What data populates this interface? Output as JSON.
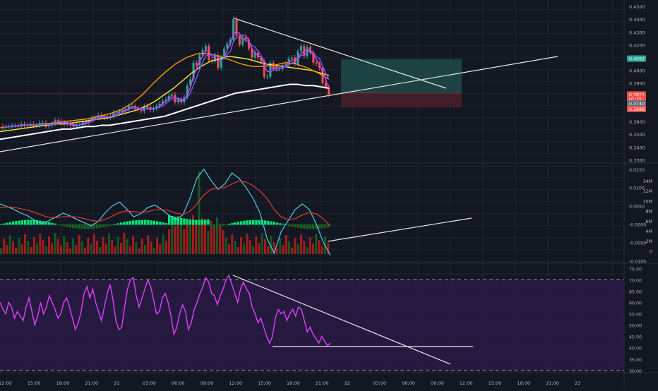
{
  "colors": {
    "background": "#131722",
    "grid": "#1f2433",
    "candle_up": "#26a69a",
    "candle_down": "#ef5350",
    "ma_purple": "#7b5cff",
    "ma_pink": "#e040fb",
    "ma_orange": "#ff9800",
    "ma_yellow": "#ffeb3b",
    "ma_white": "#ffffff",
    "rsi_line": "#e040fb",
    "rsi_band": "#2a1a45",
    "macd_line": "#4dd0e1",
    "signal_line": "#e53935",
    "hist_up": "#00e676",
    "hist_down": "#1b5e20",
    "vol_up": "#1b5e20",
    "vol_down": "#b71c1c",
    "label_green": "#26a69a",
    "label_red": "#ef5350"
  },
  "price_axis": {
    "ticks": [
      "0.4500",
      "0.4400",
      "0.4300",
      "0.4200",
      "0.4000",
      "0.3900",
      "0.3600",
      "0.3500",
      "0.3400",
      "0.3300"
    ],
    "badges": [
      {
        "text": "0.4092",
        "color": "#26a69a"
      },
      {
        "text": "0.3811",
        "color": "#ef5350"
      },
      {
        "text": "01:15",
        "color": "#ef5350"
      },
      {
        "text": "0.3740",
        "color": "#5b6b7a"
      },
      {
        "text": "0.3698",
        "color": "#ef5350"
      }
    ]
  },
  "indicator_axis": {
    "left_ticks": [
      "0.0150",
      "0.0100",
      "0.0050",
      "-0.0000",
      "-0.0050",
      "-0.0100"
    ],
    "volume_ticks": [
      "14M",
      "12M",
      "10M",
      "8M",
      "6M",
      "4M",
      "2M",
      "0"
    ]
  },
  "rsi_axis": {
    "ticks": [
      "75.00",
      "70.00",
      "65.00",
      "60.00",
      "55.00",
      "50.00",
      "45.00",
      "40.00",
      "35.00",
      "30.00"
    ]
  },
  "time_axis": {
    "ticks": [
      "12:00",
      "15:00",
      "18:00",
      "21:00",
      "21",
      "03:00",
      "06:00",
      "09:00",
      "12:00",
      "15:00",
      "18:00",
      "21:00",
      "22",
      "03:00",
      "06:00",
      "09:00",
      "12:00",
      "15:00",
      "18:00",
      "21:00",
      "23"
    ]
  },
  "chart_data": [
    {
      "type": "candlestick",
      "ylim": [
        0.328,
        0.455
      ],
      "open": [
        0.356,
        0.355,
        0.356,
        0.356,
        0.357,
        0.357,
        0.356,
        0.358,
        0.357,
        0.357,
        0.358,
        0.357,
        0.357,
        0.359,
        0.359,
        0.356,
        0.357,
        0.358,
        0.361,
        0.36,
        0.359,
        0.358,
        0.358,
        0.357,
        0.356,
        0.357,
        0.358,
        0.36,
        0.359,
        0.361,
        0.363,
        0.363,
        0.365,
        0.364,
        0.363,
        0.363,
        0.364,
        0.367,
        0.367,
        0.368,
        0.369,
        0.37,
        0.372,
        0.372,
        0.37,
        0.369,
        0.368,
        0.372,
        0.371,
        0.369,
        0.37,
        0.372,
        0.374,
        0.376,
        0.377,
        0.38,
        0.381,
        0.375,
        0.377,
        0.375,
        0.379,
        0.388,
        0.393,
        0.406,
        0.404,
        0.412,
        0.416,
        0.419,
        0.408,
        0.407,
        0.412,
        0.402,
        0.41,
        0.417,
        0.421,
        0.424,
        0.44,
        0.427,
        0.42,
        0.426,
        0.424,
        0.417,
        0.41,
        0.414,
        0.41,
        0.407,
        0.395,
        0.395,
        0.406,
        0.401,
        0.402,
        0.401,
        0.404,
        0.405,
        0.409,
        0.41,
        0.405,
        0.415,
        0.419,
        0.411,
        0.418,
        0.414,
        0.406,
        0.405,
        0.402,
        0.39,
        0.387
      ],
      "close": [
        0.355,
        0.356,
        0.356,
        0.357,
        0.357,
        0.356,
        0.358,
        0.357,
        0.357,
        0.358,
        0.357,
        0.357,
        0.359,
        0.359,
        0.356,
        0.357,
        0.358,
        0.361,
        0.36,
        0.359,
        0.358,
        0.358,
        0.357,
        0.356,
        0.357,
        0.358,
        0.36,
        0.359,
        0.361,
        0.363,
        0.363,
        0.365,
        0.364,
        0.363,
        0.363,
        0.364,
        0.367,
        0.367,
        0.368,
        0.369,
        0.37,
        0.372,
        0.372,
        0.37,
        0.369,
        0.368,
        0.372,
        0.371,
        0.369,
        0.37,
        0.372,
        0.374,
        0.376,
        0.377,
        0.38,
        0.381,
        0.375,
        0.377,
        0.375,
        0.379,
        0.388,
        0.393,
        0.406,
        0.404,
        0.412,
        0.416,
        0.419,
        0.408,
        0.407,
        0.412,
        0.402,
        0.41,
        0.417,
        0.421,
        0.424,
        0.44,
        0.427,
        0.42,
        0.426,
        0.424,
        0.417,
        0.41,
        0.414,
        0.41,
        0.407,
        0.395,
        0.395,
        0.406,
        0.401,
        0.402,
        0.401,
        0.404,
        0.405,
        0.409,
        0.41,
        0.405,
        0.415,
        0.419,
        0.411,
        0.418,
        0.414,
        0.406,
        0.405,
        0.402,
        0.39,
        0.387,
        0.381
      ],
      "ma_series": [
        {
          "values": [
            0.346,
            0.347,
            0.348,
            0.349,
            0.35,
            0.351,
            0.352,
            0.353,
            0.354,
            0.354,
            0.355,
            0.356,
            0.356,
            0.357,
            0.357,
            0.358,
            0.359,
            0.36,
            0.361,
            0.362,
            0.363,
            0.364,
            0.366,
            0.368,
            0.37,
            0.372,
            0.374,
            0.376,
            0.378,
            0.38,
            0.382,
            0.383,
            0.384,
            0.385,
            0.386,
            0.387,
            0.388,
            0.389,
            0.389,
            0.388,
            0.388,
            0.387,
            0.386
          ]
        },
        {
          "values": [
            0.352,
            0.353,
            0.354,
            0.355,
            0.356,
            0.357,
            0.358,
            0.358,
            0.359,
            0.36,
            0.361,
            0.362,
            0.363,
            0.365,
            0.367,
            0.369,
            0.372,
            0.376,
            0.381,
            0.386,
            0.392,
            0.398,
            0.403,
            0.407,
            0.409,
            0.411,
            0.41,
            0.409,
            0.407,
            0.405,
            0.404,
            0.403,
            0.402,
            0.401,
            0.4,
            0.398,
            0.396
          ]
        },
        {
          "values": [
            0.355,
            0.356,
            0.357,
            0.357,
            0.358,
            0.359,
            0.36,
            0.361,
            0.362,
            0.364,
            0.366,
            0.369,
            0.374,
            0.381,
            0.39,
            0.398,
            0.405,
            0.41,
            0.413,
            0.413,
            0.411,
            0.408,
            0.405,
            0.403,
            0.403,
            0.404,
            0.406,
            0.405,
            0.402,
            0.398,
            0.393
          ]
        }
      ]
    },
    {
      "type": "line",
      "title": "",
      "series": [
        {
          "values": [
            0.0055,
            0.0048,
            0.004,
            0.003,
            0.0022,
            0.001,
            0.0002,
            0.001,
            0.002,
            0.003,
            0.0022,
            0.0012,
            0.0004,
            -0.0005,
            0.0008,
            0.0032,
            0.005,
            0.006,
            0.0042,
            0.002,
            0.0028,
            0.0045,
            0.0052,
            0.004,
            0.0025,
            0.0012,
            0.0025,
            0.007,
            0.0125,
            0.015,
            0.012,
            0.0095,
            0.011,
            0.014,
            0.0125,
            0.01,
            0.007,
            0.003,
            -0.004,
            -0.008,
            -0.002,
            0.001,
            0.004,
            0.0055,
            0.004,
            0.0,
            -0.005,
            -0.0085
          ]
        },
        {
          "values": [
            0.0045,
            0.0047,
            0.0046,
            0.0042,
            0.0038,
            0.0032,
            0.0024,
            0.0018,
            0.0018,
            0.002,
            0.0021,
            0.0019,
            0.0015,
            0.001,
            0.0008,
            0.0013,
            0.0022,
            0.0032,
            0.0036,
            0.0034,
            0.0032,
            0.0034,
            0.0039,
            0.004,
            0.0037,
            0.003,
            0.0027,
            0.0035,
            0.0055,
            0.008,
            0.0095,
            0.0098,
            0.01,
            0.011,
            0.0118,
            0.0115,
            0.0105,
            0.009,
            0.007,
            0.004,
            0.002,
            0.0012,
            0.0015,
            0.0025,
            0.0032,
            0.0028,
            0.0015,
            -0.0005
          ]
        }
      ]
    },
    {
      "type": "line",
      "ylim": [
        29,
        77
      ],
      "bands": [
        30,
        70
      ],
      "series": [
        {
          "values": [
            60,
            57,
            55,
            60,
            58,
            53,
            56,
            54,
            52,
            58,
            62,
            56,
            50,
            54,
            60,
            55,
            58,
            63,
            60,
            57,
            53,
            55,
            60,
            62,
            58,
            53,
            48,
            51,
            56,
            64,
            67,
            62,
            66,
            60,
            56,
            52,
            58,
            64,
            68,
            61,
            52,
            48,
            49,
            58,
            66,
            70,
            71,
            63,
            58,
            62,
            66,
            70,
            67,
            61,
            55,
            56,
            62,
            64,
            60,
            54,
            46,
            49,
            55,
            59,
            56,
            48,
            51,
            57,
            60,
            64,
            67,
            71,
            69,
            64,
            63,
            59,
            63,
            66,
            70,
            72,
            68,
            64,
            60,
            66,
            69,
            66,
            64,
            58,
            55,
            51,
            53,
            49,
            45,
            42,
            45,
            53,
            57,
            55,
            56,
            52,
            55,
            57,
            54,
            58,
            57,
            52,
            47,
            49,
            46,
            44,
            42,
            45,
            43,
            41,
            42
          ]
        }
      ]
    }
  ]
}
